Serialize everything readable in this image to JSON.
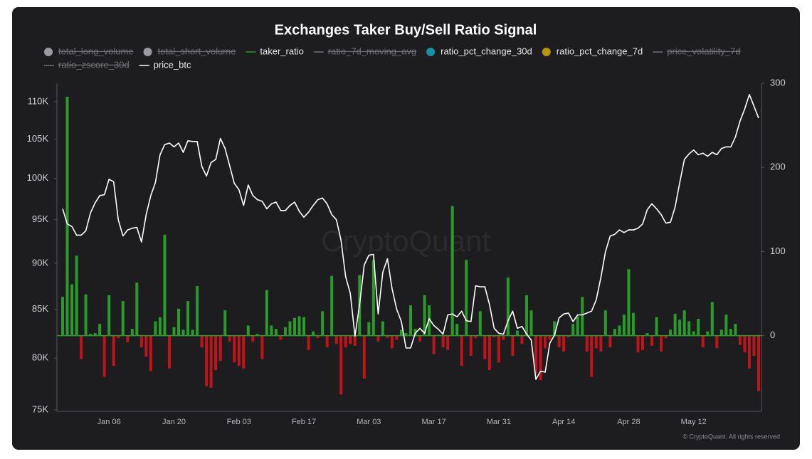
{
  "chart_data": {
    "type": "bar_line",
    "title": "Exchanges Taker Buy/Sell Ratio Signal",
    "watermark": "CryptoQuant",
    "copyright": "© CryptoQuant. All rights reserved",
    "categories": [
      null,
      null,
      null,
      null,
      null,
      null,
      null,
      null,
      null,
      null,
      "Jan 06",
      null,
      null,
      null,
      null,
      null,
      null,
      null,
      null,
      null,
      null,
      null,
      null,
      null,
      "Jan 20",
      null,
      null,
      null,
      null,
      null,
      null,
      null,
      null,
      null,
      null,
      null,
      null,
      null,
      "Feb 03",
      null,
      null,
      null,
      null,
      null,
      null,
      null,
      null,
      null,
      null,
      null,
      null,
      null,
      "Feb 17",
      null,
      null,
      null,
      null,
      null,
      null,
      null,
      null,
      null,
      null,
      null,
      null,
      null,
      "Mar 03",
      null,
      null,
      null,
      null,
      null,
      null,
      null,
      null,
      null,
      null,
      null,
      null,
      null,
      "Mar 17",
      null,
      null,
      null,
      null,
      null,
      null,
      null,
      null,
      null,
      null,
      null,
      null,
      null,
      "Mar 31",
      null,
      null,
      null,
      null,
      null,
      null,
      null,
      null,
      null,
      null,
      null,
      null,
      null,
      "Apr 14",
      null,
      null,
      null,
      null,
      null,
      null,
      null,
      null,
      null,
      null,
      null,
      null,
      null,
      "Apr 28",
      null,
      null,
      null,
      null,
      null,
      null,
      null,
      null,
      null,
      null,
      null,
      null,
      null,
      "May 12",
      null,
      null,
      null,
      null,
      null,
      null,
      null,
      null,
      null,
      null,
      null,
      null,
      null,
      null
    ],
    "ylog": true,
    "ylim": [
      74870,
      112560
    ],
    "yticks": [
      {
        "value": 75000,
        "label": "75K"
      },
      {
        "value": 80000,
        "label": "80K"
      },
      {
        "value": 85000,
        "label": "85K"
      },
      {
        "value": 90000,
        "label": "90K"
      },
      {
        "value": 95000,
        "label": "95K"
      },
      {
        "value": 100000,
        "label": "100K"
      },
      {
        "value": 105000,
        "label": "105K"
      },
      {
        "value": 110000,
        "label": "110K"
      }
    ],
    "y2lim": [
      -90,
      300
    ],
    "y2ticks": [
      0,
      100,
      200,
      300
    ],
    "series": [
      {
        "name": "total_long_volume",
        "color": "#9a9aa0",
        "marker": "circle",
        "hidden": true
      },
      {
        "name": "total_short_volume",
        "color": "#9a9aa0",
        "marker": "circle",
        "hidden": true
      },
      {
        "name": "taker_ratio",
        "color": "#2a9a2a",
        "negative_color": "#c0141a",
        "marker": "line",
        "kind": "bar",
        "axis": "y2",
        "values": [
          46,
          284,
          61,
          95,
          -28,
          49,
          2,
          3,
          14,
          -49,
          48,
          -36,
          -3,
          41,
          -8,
          8,
          63,
          -14,
          -25,
          -42,
          17,
          22,
          120,
          -39,
          10,
          32,
          7,
          41,
          7,
          59,
          -14,
          -60,
          -62,
          -41,
          -30,
          30,
          -7,
          -32,
          -36,
          -39,
          12,
          -7,
          2,
          -28,
          54,
          12,
          8,
          -5,
          10,
          17,
          21,
          23,
          22,
          -17,
          5,
          -3,
          29,
          -14,
          71,
          -10,
          -70,
          -14,
          -10,
          -12,
          72,
          -51,
          16,
          90,
          -7,
          17,
          -3,
          -15,
          -5,
          7,
          3,
          36,
          8,
          -7,
          48,
          36,
          -22,
          1,
          -14,
          -17,
          154,
          14,
          -36,
          90,
          -24,
          -3,
          29,
          -28,
          -41,
          -2,
          -32,
          -5,
          69,
          -24,
          6,
          -10,
          48,
          30,
          -45,
          -53,
          -15,
          -5,
          17,
          -14,
          -19,
          -2,
          14,
          23,
          46,
          -19,
          -49,
          -15,
          -19,
          30,
          -14,
          8,
          12,
          25,
          79,
          27,
          -20,
          -17,
          3,
          -12,
          22,
          -19,
          -3,
          7,
          26,
          19,
          30,
          17,
          5,
          20,
          -14,
          5,
          40,
          -15,
          7,
          25,
          8,
          14,
          -11,
          -20,
          -39,
          -24,
          -66
        ]
      },
      {
        "name": "ratio_7d_moving_avg",
        "color": "#8a8a90",
        "marker": "line",
        "hidden": true
      },
      {
        "name": "ratio_pct_change_30d",
        "color": "#1a8fa8",
        "marker": "circle",
        "hidden": false
      },
      {
        "name": "ratio_pct_change_7d",
        "color": "#b8960c",
        "marker": "circle",
        "hidden": false
      },
      {
        "name": "price_volatility_7d",
        "color": "#8a8a90",
        "marker": "line",
        "hidden": true
      },
      {
        "name": "ratio_zscore_30d",
        "color": "#8a8a90",
        "marker": "line",
        "hidden": true
      },
      {
        "name": "price_btc",
        "color": "#ffffff",
        "marker": "line",
        "kind": "line",
        "axis": "y",
        "values": [
          96300,
          94500,
          94200,
          93200,
          93200,
          93700,
          95800,
          97000,
          97900,
          98000,
          99900,
          99600,
          95000,
          93100,
          93800,
          94000,
          94100,
          92400,
          95600,
          97900,
          99500,
          103000,
          104300,
          104500,
          104000,
          104500,
          103300,
          104800,
          104700,
          104700,
          101500,
          100300,
          102000,
          102400,
          105100,
          103800,
          101600,
          99400,
          98600,
          96700,
          99200,
          97900,
          97400,
          97200,
          96300,
          96900,
          97100,
          96100,
          96100,
          96700,
          97100,
          96000,
          95300,
          95900,
          96700,
          97400,
          97600,
          96900,
          95600,
          95000,
          92600,
          88500,
          86700,
          82200,
          85500,
          89800,
          90900,
          91000,
          84500,
          89000,
          90500,
          87200,
          85000,
          83700,
          81000,
          81000,
          82500,
          83000,
          82500,
          84000,
          83300,
          82900,
          82400,
          84400,
          84500,
          84200,
          84800,
          83800,
          83700,
          87500,
          87400,
          87400,
          85500,
          83000,
          82500,
          82400,
          83800,
          84800,
          83000,
          83200,
          82400,
          81800,
          77900,
          78700,
          78600,
          81500,
          82300,
          84100,
          84500,
          84600,
          83700,
          84400,
          84400,
          84600,
          84800,
          86000,
          88400,
          91300,
          93100,
          93300,
          93800,
          93500,
          93800,
          93800,
          94000,
          94500,
          96200,
          96900,
          96300,
          95600,
          94600,
          94700,
          96500,
          99500,
          102400,
          103100,
          103600,
          103000,
          103200,
          102800,
          103300,
          103000,
          103800,
          104000,
          104000,
          105300,
          107400,
          109000,
          111000,
          109400,
          107800
        ]
      }
    ]
  }
}
